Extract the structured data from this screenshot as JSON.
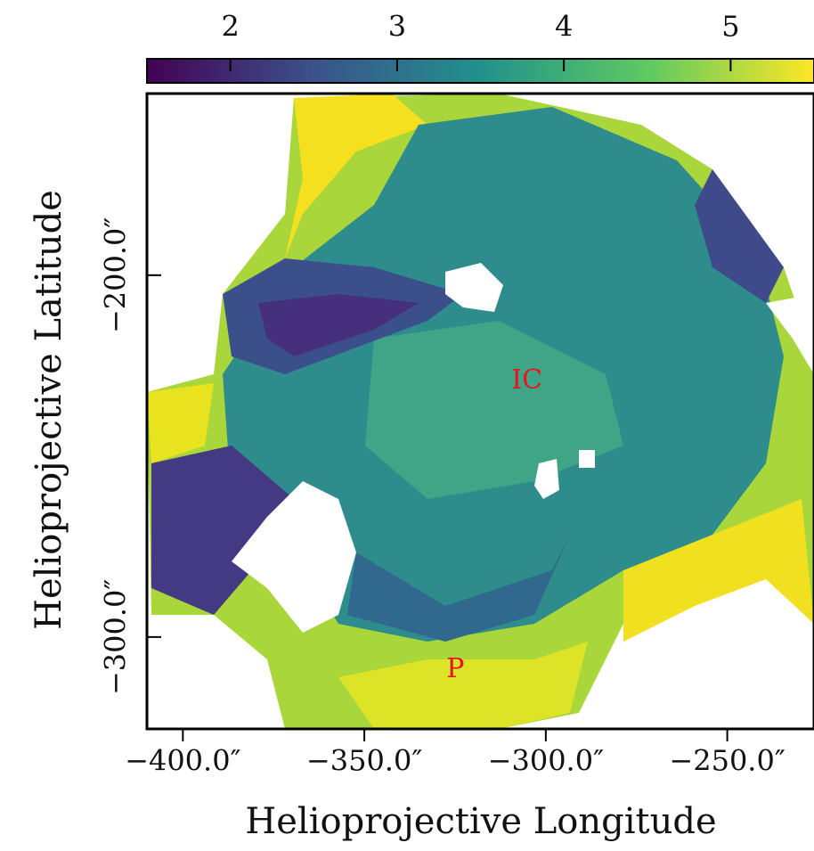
{
  "chart_data": {
    "type": "heatmap",
    "xlabel": "Helioprojective Longitude",
    "ylabel": "Helioprojective Latitude",
    "xlim": [
      -409.9,
      -226.1
    ],
    "ylim": [
      -325.4,
      -149.8
    ],
    "xticks": [
      {
        "value": -400,
        "label": "−400.0″"
      },
      {
        "value": -350,
        "label": "−350.0″"
      },
      {
        "value": -300,
        "label": "−300.0″"
      },
      {
        "value": -250,
        "label": "−250.0″"
      }
    ],
    "yticks": [
      {
        "value": -200,
        "label": "−200.0″"
      },
      {
        "value": -300,
        "label": "−300.0″"
      }
    ],
    "colorbar": {
      "clim": [
        1.5,
        5.5
      ],
      "ticks": [
        2,
        3,
        4,
        5
      ],
      "colormap": [
        "#440154",
        "#3b528b",
        "#21918c",
        "#5ec962",
        "#fde725"
      ]
    },
    "annotations": [
      {
        "text": "IC",
        "x": -305.2,
        "y": -229.3,
        "color": "#e8141c"
      },
      {
        "text": "P",
        "x": -324.9,
        "y": -309.1,
        "color": "#e8141c"
      }
    ]
  }
}
